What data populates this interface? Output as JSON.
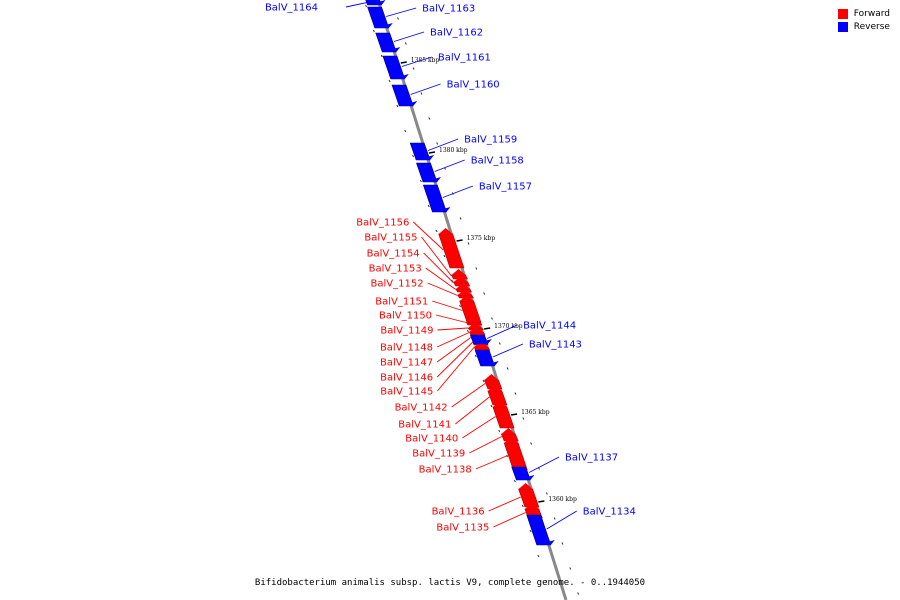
{
  "legend": {
    "forward_label": "Forward",
    "reverse_label": "Reverse",
    "forward_color": "#ff0000",
    "reverse_color": "#0000ff"
  },
  "caption": "Bifidobacterium animalis subsp. lactis V9, complete genome. - 0..1944050",
  "axis": {
    "label_color": "#000000",
    "ticks": [
      "1385 kbp",
      "1380 kbp",
      "1375 kbp",
      "1370 kbp",
      "1365 kbp",
      "1360 kbp"
    ]
  },
  "genes": [
    {
      "id": "BalV_1164",
      "strand": "reverse"
    },
    {
      "id": "BalV_1163",
      "strand": "reverse"
    },
    {
      "id": "BalV_1162",
      "strand": "reverse"
    },
    {
      "id": "BalV_1161",
      "strand": "reverse"
    },
    {
      "id": "BalV_1160",
      "strand": "reverse"
    },
    {
      "id": "BalV_1159",
      "strand": "reverse"
    },
    {
      "id": "BalV_1158",
      "strand": "reverse"
    },
    {
      "id": "BalV_1157",
      "strand": "reverse"
    },
    {
      "id": "BalV_1156",
      "strand": "forward"
    },
    {
      "id": "BalV_1155",
      "strand": "forward"
    },
    {
      "id": "BalV_1154",
      "strand": "forward"
    },
    {
      "id": "BalV_1153",
      "strand": "forward"
    },
    {
      "id": "BalV_1152",
      "strand": "forward"
    },
    {
      "id": "BalV_1151",
      "strand": "forward"
    },
    {
      "id": "BalV_1150",
      "strand": "forward"
    },
    {
      "id": "BalV_1149",
      "strand": "forward"
    },
    {
      "id": "BalV_1148",
      "strand": "forward"
    },
    {
      "id": "BalV_1147",
      "strand": "forward"
    },
    {
      "id": "BalV_1146",
      "strand": "forward"
    },
    {
      "id": "BalV_1145",
      "strand": "forward"
    },
    {
      "id": "BalV_1144",
      "strand": "reverse"
    },
    {
      "id": "BalV_1143",
      "strand": "reverse"
    },
    {
      "id": "BalV_1142",
      "strand": "forward"
    },
    {
      "id": "BalV_1141",
      "strand": "forward"
    },
    {
      "id": "BalV_1140",
      "strand": "forward"
    },
    {
      "id": "BalV_1139",
      "strand": "forward"
    },
    {
      "id": "BalV_1138",
      "strand": "forward"
    },
    {
      "id": "BalV_1137",
      "strand": "reverse"
    },
    {
      "id": "BalV_1136",
      "strand": "forward"
    },
    {
      "id": "BalV_1135",
      "strand": "forward"
    },
    {
      "id": "BalV_1134",
      "strand": "reverse"
    }
  ]
}
